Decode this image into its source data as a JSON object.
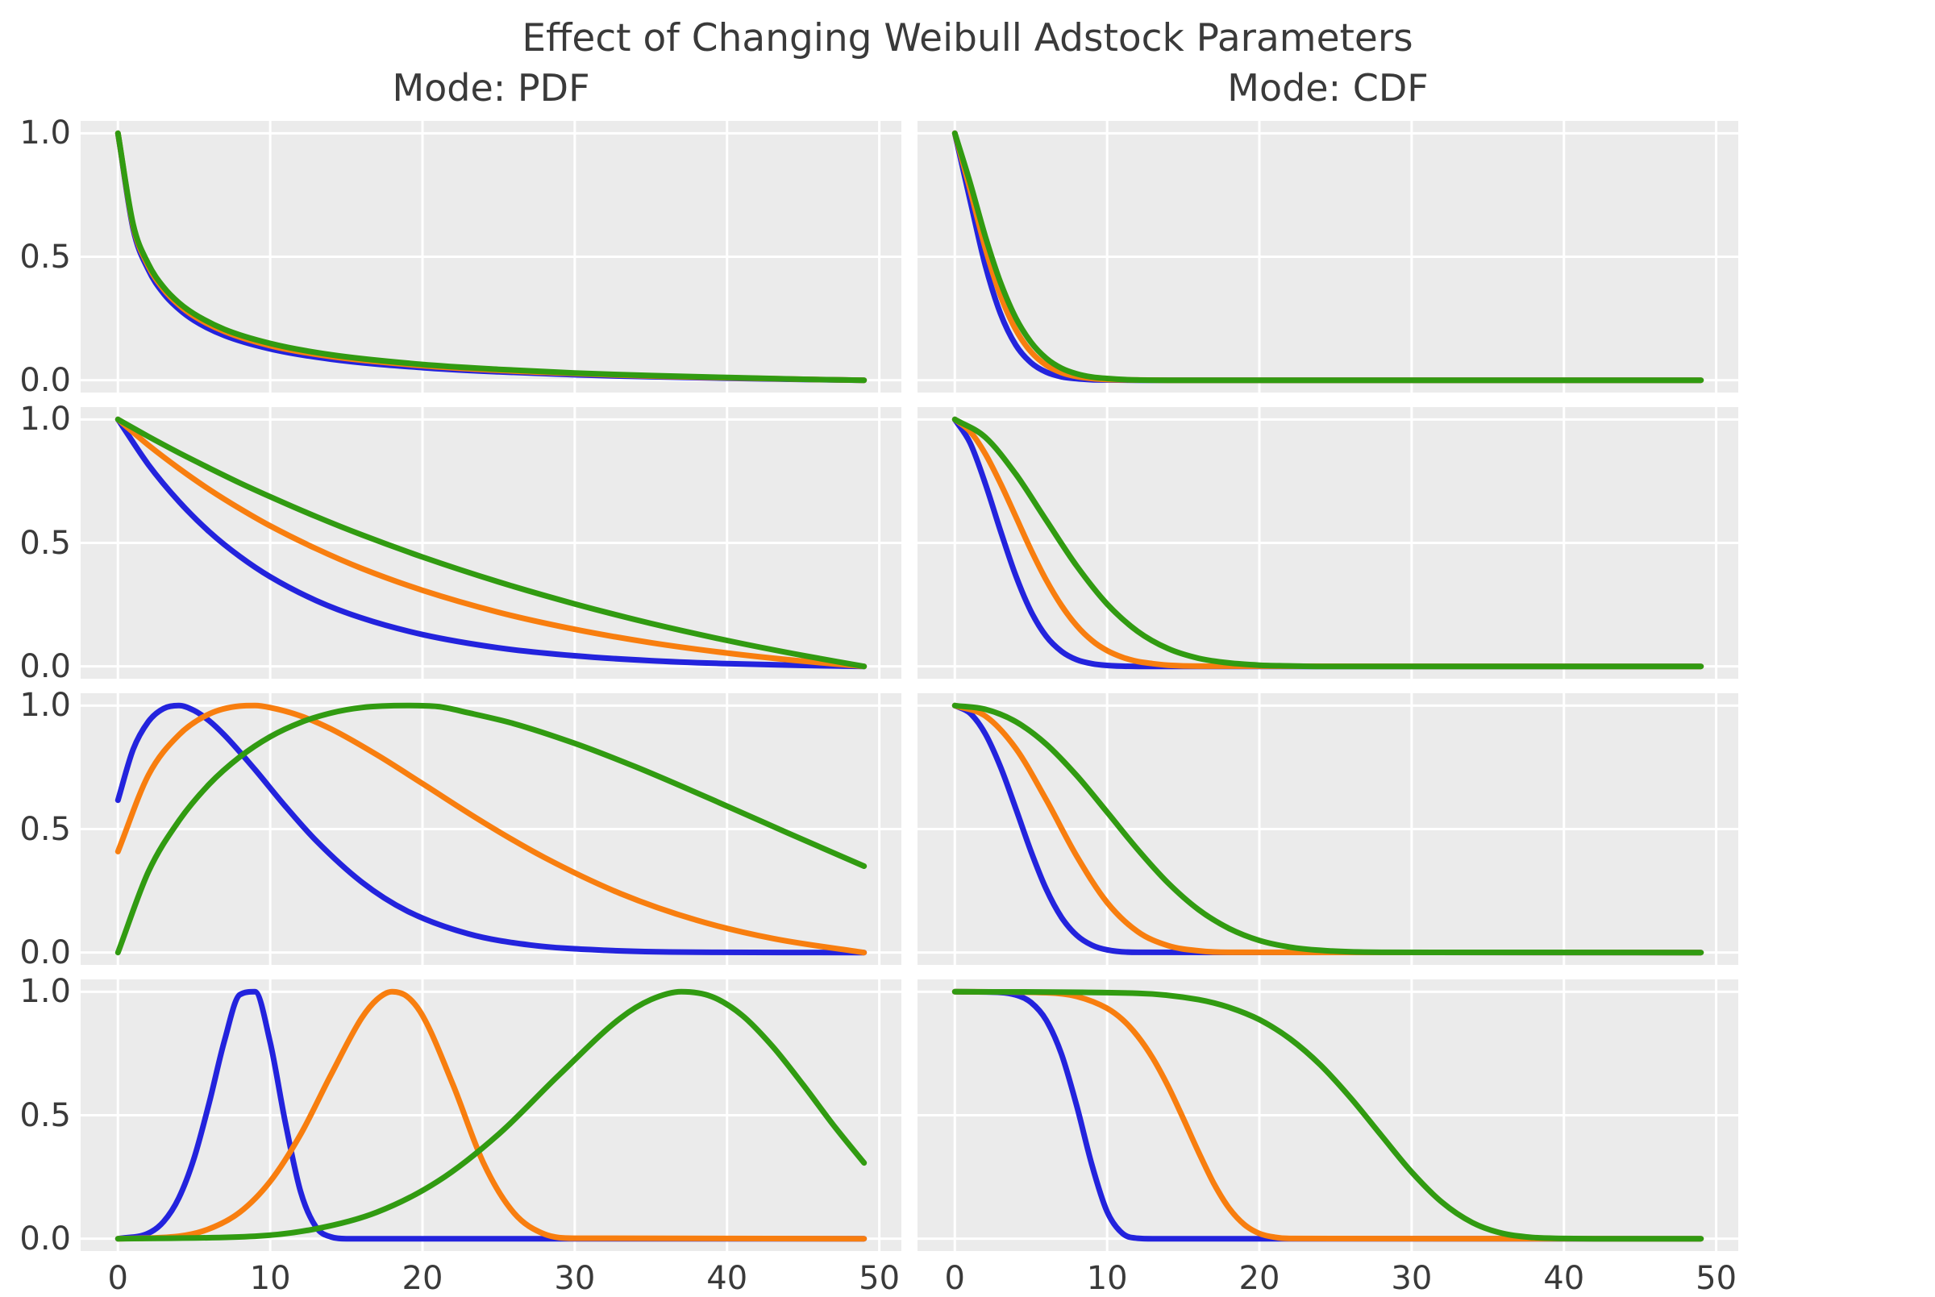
{
  "figure": {
    "title": "Effect of Changing Weibull Adstock Parameters",
    "background_color": "#ffffff",
    "panel_background_color": "#ebebeb",
    "gridline_color": "#ffffff",
    "text_color": "#3a3a3a"
  },
  "columns": [
    {
      "title": "Mode: PDF"
    },
    {
      "title": "Mode: CDF"
    }
  ],
  "axes": {
    "x_ticks": [
      0,
      10,
      20,
      30,
      40,
      50
    ],
    "x_tick_labels": [
      "0",
      "10",
      "20",
      "30",
      "40",
      "50"
    ],
    "y_ticks": [
      1.0,
      0.5,
      0.0
    ],
    "y_tick_labels": [
      "1.0",
      "0.5",
      "0.0"
    ],
    "xlim": [
      -2.45,
      51.45
    ],
    "ylim": [
      -0.05,
      1.05
    ],
    "grid": true,
    "legend": false
  },
  "series_colors": {
    "blue": "#2323DD",
    "orange": "#F87E0F",
    "green": "#319B11"
  },
  "chart_data": [
    {
      "type": "line",
      "row": 1,
      "col": 0,
      "mode": "Mode: PDF",
      "series": [
        {
          "name": "series-blue",
          "color": "#2323DD",
          "x": [
            0,
            1,
            2,
            3,
            4,
            5,
            7,
            10,
            14,
            20,
            25,
            30,
            35,
            40,
            45,
            49
          ],
          "y": [
            1,
            0.612,
            0.447,
            0.351,
            0.288,
            0.242,
            0.181,
            0.127,
            0.085,
            0.051,
            0.034,
            0.022,
            0.014,
            0.008,
            0.003,
            0
          ]
        },
        {
          "name": "series-orange",
          "color": "#F87E0F",
          "x": [
            0,
            1,
            2,
            3,
            4,
            5,
            7,
            10,
            14,
            20,
            25,
            30,
            35,
            40,
            45,
            49
          ],
          "y": [
            1,
            0.624,
            0.462,
            0.368,
            0.305,
            0.259,
            0.197,
            0.14,
            0.096,
            0.059,
            0.04,
            0.027,
            0.017,
            0.01,
            0.004,
            0
          ]
        },
        {
          "name": "series-green",
          "color": "#319B11",
          "x": [
            0,
            1,
            2,
            3,
            4,
            5,
            7,
            10,
            14,
            20,
            25,
            30,
            35,
            40,
            45,
            49
          ],
          "y": [
            1,
            0.631,
            0.471,
            0.377,
            0.314,
            0.269,
            0.206,
            0.149,
            0.103,
            0.064,
            0.044,
            0.029,
            0.019,
            0.011,
            0.004,
            0
          ]
        }
      ]
    },
    {
      "type": "line",
      "row": 2,
      "col": 0,
      "mode": "Mode: PDF",
      "series": [
        {
          "name": "series-blue",
          "color": "#2323DD",
          "x": [
            0,
            2,
            4,
            6,
            8,
            10,
            13,
            16,
            20,
            25,
            30,
            35,
            40,
            45,
            49
          ],
          "y": [
            1,
            0.817,
            0.668,
            0.545,
            0.445,
            0.363,
            0.267,
            0.196,
            0.129,
            0.075,
            0.043,
            0.023,
            0.011,
            0.004,
            0
          ]
        },
        {
          "name": "series-orange",
          "color": "#F87E0F",
          "x": [
            0,
            2,
            4,
            6,
            8,
            10,
            13,
            16,
            20,
            25,
            30,
            35,
            40,
            45,
            49
          ],
          "y": [
            1,
            0.896,
            0.802,
            0.716,
            0.639,
            0.569,
            0.477,
            0.397,
            0.308,
            0.219,
            0.15,
            0.096,
            0.054,
            0.021,
            0
          ]
        },
        {
          "name": "series-green",
          "color": "#319B11",
          "x": [
            0,
            2,
            4,
            6,
            8,
            10,
            13,
            16,
            20,
            25,
            30,
            35,
            40,
            45,
            49
          ],
          "y": [
            1,
            0.931,
            0.865,
            0.803,
            0.743,
            0.687,
            0.607,
            0.533,
            0.443,
            0.342,
            0.253,
            0.174,
            0.105,
            0.044,
            0
          ]
        }
      ]
    },
    {
      "type": "line",
      "row": 3,
      "col": 0,
      "mode": "Mode: PDF",
      "series": [
        {
          "name": "series-blue",
          "color": "#2323DD",
          "x": [
            0,
            1,
            2,
            3,
            4,
            5,
            6,
            7,
            9,
            11,
            13,
            16,
            19,
            23,
            27,
            32,
            39,
            49
          ],
          "y": [
            0.617,
            0.823,
            0.935,
            0.988,
            1,
            0.98,
            0.938,
            0.88,
            0.741,
            0.592,
            0.454,
            0.286,
            0.168,
            0.076,
            0.031,
            0.009,
            0.001,
            0
          ]
        },
        {
          "name": "series-orange",
          "color": "#F87E0F",
          "x": [
            0,
            2,
            4,
            6,
            8,
            9,
            10,
            12,
            14,
            17,
            20,
            24,
            28,
            33,
            38,
            43,
            49
          ],
          "y": [
            0.409,
            0.718,
            0.881,
            0.966,
            0.998,
            1,
            0.992,
            0.958,
            0.905,
            0.801,
            0.684,
            0.527,
            0.385,
            0.239,
            0.131,
            0.057,
            0
          ]
        },
        {
          "name": "series-green",
          "color": "#319B11",
          "x": [
            0,
            2,
            4,
            6,
            8,
            10,
            12,
            14,
            16,
            19,
            21,
            23,
            26,
            30,
            34,
            39,
            44,
            49
          ],
          "y": [
            0,
            0.327,
            0.533,
            0.682,
            0.792,
            0.874,
            0.932,
            0.97,
            0.992,
            1,
            0.996,
            0.971,
            0.927,
            0.847,
            0.752,
            0.62,
            0.484,
            0.35
          ]
        }
      ]
    },
    {
      "type": "line",
      "row": 4,
      "col": 0,
      "mode": "Mode: PDF",
      "series": [
        {
          "name": "series-blue",
          "color": "#2323DD",
          "x": [
            0,
            2,
            3,
            4,
            5,
            6,
            7,
            8,
            9,
            10,
            11,
            12,
            13,
            14,
            15,
            49
          ],
          "y": [
            0,
            0.022,
            0.069,
            0.165,
            0.326,
            0.552,
            0.803,
            0.988,
            1,
            0.795,
            0.469,
            0.19,
            0.048,
            0.007,
            0,
            0
          ]
        },
        {
          "name": "series-orange",
          "color": "#F87E0F",
          "x": [
            0,
            4,
            6,
            8,
            10,
            12,
            14,
            16,
            17,
            18,
            19,
            20,
            22,
            24,
            26,
            28,
            30,
            49
          ],
          "y": [
            0,
            0.01,
            0.04,
            0.107,
            0.232,
            0.423,
            0.665,
            0.893,
            0.968,
            1,
            0.98,
            0.904,
            0.624,
            0.307,
            0.105,
            0.019,
            0.002,
            0
          ]
        },
        {
          "name": "series-green",
          "color": "#319B11",
          "x": [
            0,
            9,
            13,
            17,
            21,
            25,
            29,
            33,
            35,
            37,
            39,
            41,
            43,
            45,
            47,
            49
          ],
          "y": [
            0,
            0.01,
            0.04,
            0.107,
            0.232,
            0.423,
            0.665,
            0.893,
            0.968,
            1,
            0.98,
            0.904,
            0.778,
            0.623,
            0.459,
            0.307
          ]
        }
      ]
    },
    {
      "type": "line",
      "row": 1,
      "col": 1,
      "mode": "Mode: CDF",
      "series": [
        {
          "name": "series-blue",
          "color": "#2323DD",
          "x": [
            0,
            1,
            2,
            3,
            4,
            5,
            6,
            7,
            8,
            9,
            10,
            12,
            49
          ],
          "y": [
            1,
            0.729,
            0.466,
            0.27,
            0.143,
            0.071,
            0.033,
            0.014,
            0.006,
            0.002,
            0.001,
            0,
            0
          ]
        },
        {
          "name": "series-orange",
          "color": "#F87E0F",
          "x": [
            0,
            1,
            2,
            3,
            4,
            5,
            6,
            7,
            8,
            9,
            10,
            12,
            14,
            49
          ],
          "y": [
            1,
            0.772,
            0.536,
            0.343,
            0.205,
            0.115,
            0.061,
            0.031,
            0.015,
            0.007,
            0.003,
            0.001,
            0,
            0
          ]
        },
        {
          "name": "series-green",
          "color": "#319B11",
          "x": [
            0,
            1,
            2,
            3,
            4,
            5,
            6,
            7,
            8,
            9,
            10,
            12,
            14,
            49
          ],
          "y": [
            1,
            0.8,
            0.583,
            0.396,
            0.253,
            0.154,
            0.089,
            0.049,
            0.026,
            0.013,
            0.007,
            0.001,
            0,
            0
          ]
        }
      ]
    },
    {
      "type": "line",
      "row": 2,
      "col": 1,
      "mode": "Mode: CDF",
      "series": [
        {
          "name": "series-blue",
          "color": "#2323DD",
          "x": [
            0,
            1,
            2,
            3,
            4,
            5,
            6,
            7,
            8,
            9,
            10,
            12,
            49
          ],
          "y": [
            1,
            0.905,
            0.741,
            0.549,
            0.368,
            0.223,
            0.122,
            0.061,
            0.027,
            0.011,
            0.004,
            0,
            0
          ]
        },
        {
          "name": "series-orange",
          "color": "#F87E0F",
          "x": [
            0,
            1,
            2,
            3,
            4,
            5,
            6,
            7,
            8,
            9,
            10,
            11,
            12,
            13,
            14,
            16,
            49
          ],
          "y": [
            1,
            0.951,
            0.861,
            0.741,
            0.607,
            0.472,
            0.35,
            0.247,
            0.165,
            0.105,
            0.064,
            0.037,
            0.02,
            0.011,
            0.005,
            0.001,
            0
          ]
        },
        {
          "name": "series-green",
          "color": "#319B11",
          "x": [
            0,
            2,
            4,
            6,
            8,
            10,
            12,
            14,
            16,
            18,
            20,
            22,
            24,
            49
          ],
          "y": [
            1,
            0.928,
            0.779,
            0.592,
            0.407,
            0.253,
            0.142,
            0.072,
            0.033,
            0.014,
            0.005,
            0.002,
            0,
            0
          ]
        }
      ]
    },
    {
      "type": "line",
      "row": 3,
      "col": 1,
      "mode": "Mode: CDF",
      "series": [
        {
          "name": "series-blue",
          "color": "#2323DD",
          "x": [
            0,
            1,
            2,
            3,
            4,
            5,
            6,
            7,
            8,
            9,
            10,
            12,
            49
          ],
          "y": [
            1,
            0.969,
            0.886,
            0.752,
            0.584,
            0.41,
            0.257,
            0.143,
            0.07,
            0.03,
            0.011,
            0.001,
            0
          ]
        },
        {
          "name": "series-orange",
          "color": "#F87E0F",
          "x": [
            0,
            2,
            4,
            6,
            8,
            10,
            12,
            14,
            16,
            18,
            49
          ],
          "y": [
            1,
            0.958,
            0.827,
            0.619,
            0.391,
            0.203,
            0.085,
            0.028,
            0.007,
            0.001,
            0
          ]
        },
        {
          "name": "series-green",
          "color": "#319B11",
          "x": [
            0,
            2,
            4,
            6,
            8,
            10,
            12,
            14,
            16,
            18,
            20,
            22,
            24,
            26,
            28,
            49
          ],
          "y": [
            1,
            0.985,
            0.935,
            0.844,
            0.717,
            0.569,
            0.418,
            0.282,
            0.174,
            0.098,
            0.049,
            0.022,
            0.009,
            0.003,
            0.001,
            0
          ]
        }
      ]
    },
    {
      "type": "line",
      "row": 4,
      "col": 1,
      "mode": "Mode: CDF",
      "series": [
        {
          "name": "series-blue",
          "color": "#2323DD",
          "x": [
            0,
            3,
            4,
            5,
            6,
            7,
            8,
            9,
            10,
            11,
            12,
            13,
            49
          ],
          "y": [
            1,
            0.997,
            0.987,
            0.957,
            0.885,
            0.748,
            0.539,
            0.299,
            0.11,
            0.022,
            0.002,
            0,
            0
          ]
        },
        {
          "name": "series-orange",
          "color": "#F87E0F",
          "x": [
            0,
            6,
            8,
            10,
            11,
            12,
            13,
            14,
            15,
            16,
            17,
            18,
            19,
            20,
            21,
            22,
            49
          ],
          "y": [
            1,
            0.996,
            0.981,
            0.933,
            0.888,
            0.821,
            0.731,
            0.618,
            0.487,
            0.351,
            0.225,
            0.125,
            0.058,
            0.021,
            0.006,
            0.001,
            0
          ]
        },
        {
          "name": "series-green",
          "color": "#319B11",
          "x": [
            0,
            12,
            16,
            18,
            20,
            22,
            24,
            26,
            28,
            30,
            32,
            34,
            36,
            38,
            40,
            42,
            49
          ],
          "y": [
            1,
            0.994,
            0.968,
            0.937,
            0.887,
            0.81,
            0.704,
            0.57,
            0.419,
            0.27,
            0.147,
            0.065,
            0.021,
            0.005,
            0.001,
            0,
            0
          ]
        }
      ]
    }
  ]
}
